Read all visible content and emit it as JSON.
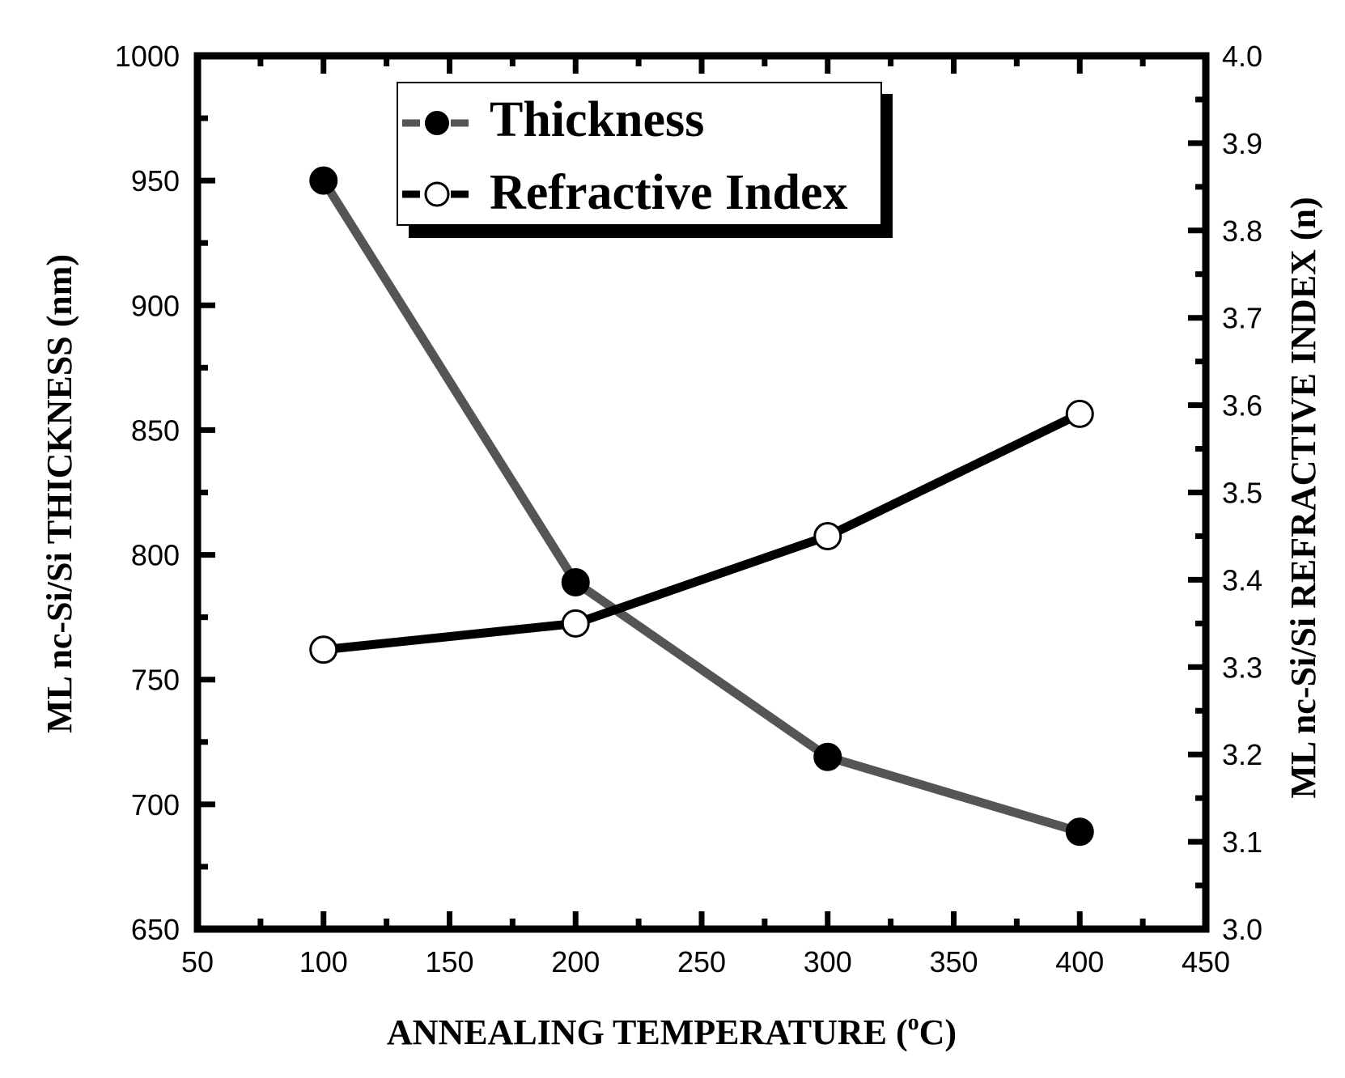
{
  "chart_data": {
    "type": "line",
    "x": [
      100,
      200,
      300,
      400
    ],
    "xlabel": "ANNEALING TEMPERATURE (",
    "xlabel_sup": "o",
    "xlabel_end": "C)",
    "xlim": [
      50,
      450
    ],
    "xticks": [
      50,
      100,
      150,
      200,
      250,
      300,
      350,
      400,
      450
    ],
    "ylabel_left": "ML nc-Si/Si THICKNESS (nm)",
    "ylim_left": [
      650,
      1000
    ],
    "yticks_left": [
      650,
      700,
      750,
      800,
      850,
      900,
      950,
      1000
    ],
    "ylabel_right": "ML nc-Si/Si  REFRACTIVE INDEX (n)",
    "ylim_right": [
      3.0,
      4.0
    ],
    "yticks_right": [
      "3.0",
      "3.1",
      "3.2",
      "3.3",
      "3.4",
      "3.5",
      "3.6",
      "3.7",
      "3.8",
      "3.9",
      "4.0"
    ],
    "grid": false,
    "legend_position": "top-center",
    "series": [
      {
        "name": "Thickness",
        "axis": "left",
        "marker": "filled-circle",
        "color": "#555555",
        "values": [
          950,
          789,
          719,
          689
        ]
      },
      {
        "name": "Refractive Index",
        "axis": "right",
        "marker": "open-circle",
        "color": "#000000",
        "values": [
          3.32,
          3.35,
          3.45,
          3.59
        ]
      }
    ]
  }
}
